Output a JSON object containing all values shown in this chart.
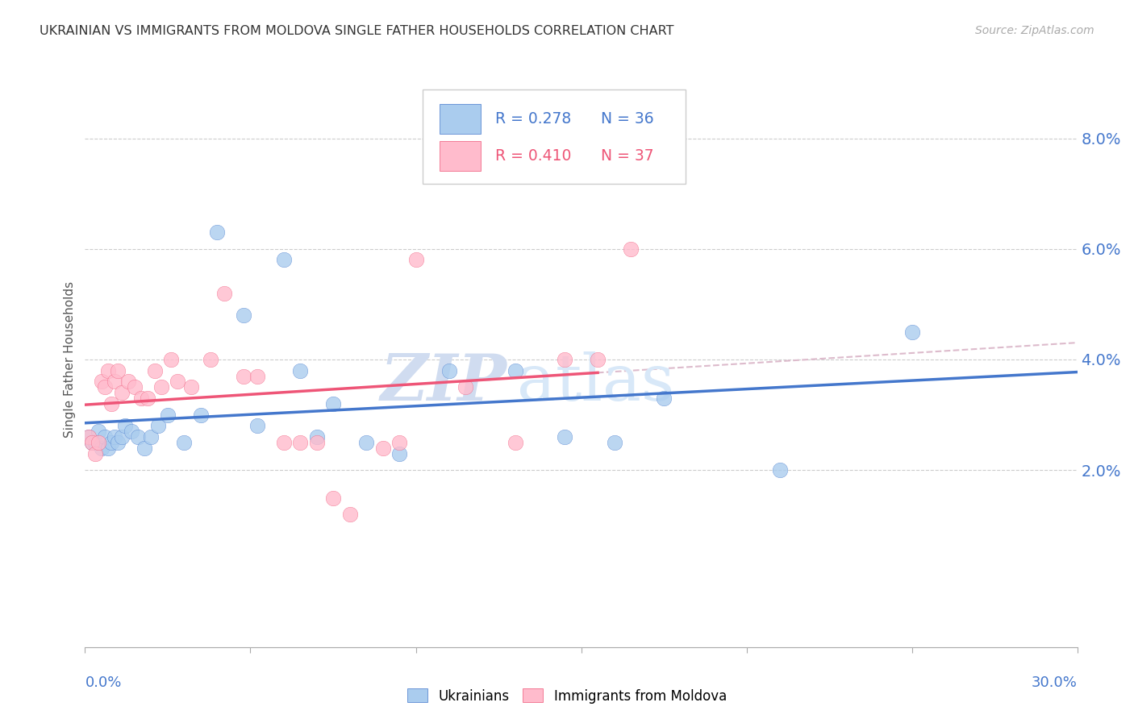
{
  "title": "UKRAINIAN VS IMMIGRANTS FROM MOLDOVA SINGLE FATHER HOUSEHOLDS CORRELATION CHART",
  "source": "Source: ZipAtlas.com",
  "ylabel": "Single Father Households",
  "xlim": [
    0.0,
    0.3
  ],
  "ylim": [
    -0.012,
    0.092
  ],
  "y_tick_labels": [
    "2.0%",
    "4.0%",
    "6.0%",
    "8.0%"
  ],
  "y_tick_values": [
    0.02,
    0.04,
    0.06,
    0.08
  ],
  "legend_blue_R": "R = 0.278",
  "legend_blue_N": "N = 36",
  "legend_pink_R": "R = 0.410",
  "legend_pink_N": "N = 37",
  "blue_scatter_color": "#AACCEE",
  "pink_scatter_color": "#FFBBCC",
  "blue_line_color": "#4477CC",
  "pink_line_color": "#EE5577",
  "dashed_color": "#DDBBCC",
  "watermark_zip": "ZIP",
  "watermark_atlas": "atlas",
  "blue_x": [
    0.001,
    0.002,
    0.003,
    0.004,
    0.005,
    0.006,
    0.007,
    0.008,
    0.009,
    0.01,
    0.011,
    0.012,
    0.014,
    0.016,
    0.018,
    0.02,
    0.022,
    0.025,
    0.03,
    0.035,
    0.04,
    0.048,
    0.052,
    0.06,
    0.065,
    0.07,
    0.075,
    0.085,
    0.095,
    0.11,
    0.13,
    0.145,
    0.16,
    0.175,
    0.21,
    0.25
  ],
  "blue_y": [
    0.026,
    0.025,
    0.025,
    0.027,
    0.024,
    0.026,
    0.024,
    0.025,
    0.026,
    0.025,
    0.026,
    0.028,
    0.027,
    0.026,
    0.024,
    0.026,
    0.028,
    0.03,
    0.025,
    0.03,
    0.063,
    0.048,
    0.028,
    0.058,
    0.038,
    0.026,
    0.032,
    0.025,
    0.023,
    0.038,
    0.038,
    0.026,
    0.025,
    0.033,
    0.02,
    0.045
  ],
  "pink_x": [
    0.001,
    0.002,
    0.003,
    0.004,
    0.005,
    0.006,
    0.007,
    0.008,
    0.009,
    0.01,
    0.011,
    0.013,
    0.015,
    0.017,
    0.019,
    0.021,
    0.023,
    0.026,
    0.028,
    0.032,
    0.038,
    0.042,
    0.048,
    0.052,
    0.06,
    0.065,
    0.07,
    0.075,
    0.08,
    0.09,
    0.095,
    0.1,
    0.115,
    0.13,
    0.145,
    0.155,
    0.165
  ],
  "pink_y": [
    0.026,
    0.025,
    0.023,
    0.025,
    0.036,
    0.035,
    0.038,
    0.032,
    0.036,
    0.038,
    0.034,
    0.036,
    0.035,
    0.033,
    0.033,
    0.038,
    0.035,
    0.04,
    0.036,
    0.035,
    0.04,
    0.052,
    0.037,
    0.037,
    0.025,
    0.025,
    0.025,
    0.015,
    0.012,
    0.024,
    0.025,
    0.058,
    0.035,
    0.025,
    0.04,
    0.04,
    0.06
  ],
  "blue_line_x0": 0.0,
  "blue_line_x1": 0.3,
  "pink_line_x0": 0.0,
  "pink_line_x1": 0.155,
  "dashed_line_x0": 0.12,
  "dashed_line_x1": 0.3
}
